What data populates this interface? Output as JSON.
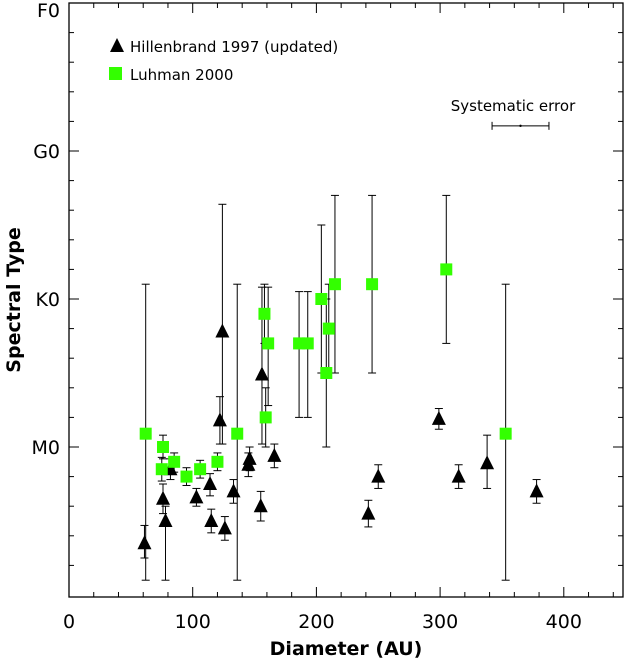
{
  "chart_data": {
    "type": "scatter",
    "xlabel": "Diameter (AU)",
    "ylabel": "Spectral Type",
    "xlim": [
      0,
      450
    ],
    "x_ticks": [
      0,
      100,
      200,
      300,
      400
    ],
    "y_scale_note": "spectral subclass index: F0=0, G0=10, K0=20, M0=30",
    "ylim": [
      0,
      39
    ],
    "y_ticks": [
      {
        "value": 0,
        "label": "F0"
      },
      {
        "value": 10,
        "label": "G0"
      },
      {
        "value": 20,
        "label": "K0"
      },
      {
        "value": 30,
        "label": "M0"
      }
    ],
    "grid": false,
    "legend_position": "top-left",
    "annotation": {
      "text": "Systematic error",
      "x": 365,
      "y": 8.3,
      "xerr": 23
    },
    "series": [
      {
        "name": "Hillenbrand 1997 (updated)",
        "marker": "triangle",
        "color": "#000000",
        "points": [
          {
            "x": 61,
            "y": 36.5,
            "lo": 35.3,
            "hi": 37.5
          },
          {
            "x": 76,
            "y": 33.5,
            "lo": 32.5,
            "hi": 34.5
          },
          {
            "x": 78,
            "y": 35.0,
            "lo": 34.0,
            "hi": 39.0
          },
          {
            "x": 82,
            "y": 31.5,
            "lo": 30.8,
            "hi": 32.2
          },
          {
            "x": 103,
            "y": 33.4,
            "lo": 32.8,
            "hi": 34.0
          },
          {
            "x": 114,
            "y": 32.5,
            "lo": 31.8,
            "hi": 33.3
          },
          {
            "x": 115,
            "y": 35.0,
            "lo": 34.2,
            "hi": 35.8
          },
          {
            "x": 122,
            "y": 28.2,
            "lo": 26.6,
            "hi": 29.8
          },
          {
            "x": 124,
            "y": 22.2,
            "lo": 13.6,
            "hi": 29.8
          },
          {
            "x": 126,
            "y": 35.5,
            "lo": 34.7,
            "hi": 36.3
          },
          {
            "x": 133,
            "y": 33.0,
            "lo": 32.2,
            "hi": 33.8
          },
          {
            "x": 145,
            "y": 31.2,
            "lo": 30.4,
            "hi": 32.0
          },
          {
            "x": 146,
            "y": 30.8,
            "lo": 30.0,
            "hi": 31.6
          },
          {
            "x": 155,
            "y": 34.0,
            "lo": 33.0,
            "hi": 35.0
          },
          {
            "x": 156,
            "y": 25.1,
            "lo": 19.2,
            "hi": 29.8
          },
          {
            "x": 166,
            "y": 30.6,
            "lo": 29.8,
            "hi": 31.4
          },
          {
            "x": 242,
            "y": 34.5,
            "lo": 33.6,
            "hi": 35.4
          },
          {
            "x": 250,
            "y": 32.0,
            "lo": 31.2,
            "hi": 32.8
          },
          {
            "x": 299,
            "y": 28.1,
            "lo": 27.4,
            "hi": 28.8
          },
          {
            "x": 315,
            "y": 32.0,
            "lo": 31.2,
            "hi": 32.8
          },
          {
            "x": 338,
            "y": 31.1,
            "lo": 29.2,
            "hi": 32.8
          },
          {
            "x": 378,
            "y": 33.0,
            "lo": 32.2,
            "hi": 33.8
          }
        ]
      },
      {
        "name": "Luhman 2000",
        "marker": "square",
        "color": "#33ff00",
        "points": [
          {
            "x": 62,
            "y": 29.1,
            "lo": 19.0,
            "hi": 39.0
          },
          {
            "x": 75,
            "y": 31.5,
            "lo": 30.7,
            "hi": 32.3
          },
          {
            "x": 76,
            "y": 30.0,
            "lo": 29.2,
            "hi": 30.8
          },
          {
            "x": 85,
            "y": 31.0,
            "lo": 30.4,
            "hi": 31.7
          },
          {
            "x": 95,
            "y": 32.0,
            "lo": 31.4,
            "hi": 32.6
          },
          {
            "x": 106,
            "y": 31.5,
            "lo": 30.9,
            "hi": 32.1
          },
          {
            "x": 120,
            "y": 31.0,
            "lo": 30.4,
            "hi": 31.6
          },
          {
            "x": 136,
            "y": 29.1,
            "lo": 19.0,
            "hi": 39.0
          },
          {
            "x": 158,
            "y": 21.0,
            "lo": 19.0,
            "hi": 23.0
          },
          {
            "x": 159,
            "y": 28.0,
            "lo": 26.0,
            "hi": 30.0
          },
          {
            "x": 161,
            "y": 23.0,
            "lo": 19.2,
            "hi": 27.2
          },
          {
            "x": 186,
            "y": 23.0,
            "lo": 19.5,
            "hi": 28.0
          },
          {
            "x": 193,
            "y": 23.0,
            "lo": 19.5,
            "hi": 28.0
          },
          {
            "x": 204,
            "y": 20.0,
            "lo": 15.0,
            "hi": 25.0
          },
          {
            "x": 208,
            "y": 25.0,
            "lo": 20.0,
            "hi": 30.0
          },
          {
            "x": 210,
            "y": 22.0,
            "lo": 19.0,
            "hi": 25.0
          },
          {
            "x": 215,
            "y": 19.0,
            "lo": 13.0,
            "hi": 25.0
          },
          {
            "x": 245,
            "y": 19.0,
            "lo": 13.0,
            "hi": 25.0
          },
          {
            "x": 305,
            "y": 18.0,
            "lo": 13.0,
            "hi": 23.0
          },
          {
            "x": 353,
            "y": 29.1,
            "lo": 19.0,
            "hi": 39.0
          }
        ]
      }
    ]
  }
}
